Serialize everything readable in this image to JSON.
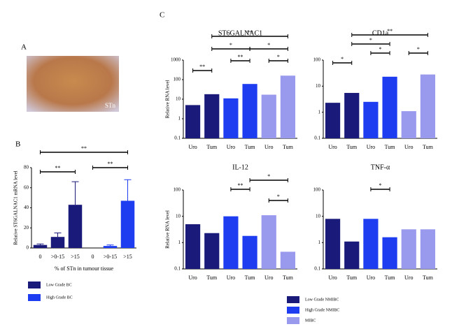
{
  "panel_labels": [
    "A",
    "B",
    "C"
  ],
  "image_label": "STn",
  "legend_c": [
    {
      "name": "Low Grade NMIBC",
      "color": "#1a1a7a"
    },
    {
      "name": "High Grade NMIBC",
      "color": "#1e3cf0"
    },
    {
      "name": "MIBC",
      "color": "#9999ee"
    }
  ],
  "chart_data": [
    {
      "type": "bar",
      "ylabel": "Relative ST6GALNAC1 mRNA level",
      "xlabel": "% of STn in tumour tissue",
      "categories": [
        "0",
        ">0-15",
        ">15",
        "0",
        ">0-15",
        ">15"
      ],
      "series": [
        {
          "name": "Low Grade BC",
          "color": "#1a1a7a",
          "values": [
            3,
            11,
            43,
            null,
            null,
            null
          ],
          "errors": [
            1,
            4,
            23,
            null,
            null,
            null
          ]
        },
        {
          "name": "High Grade BC",
          "color": "#1e3cf0",
          "values": [
            null,
            null,
            null,
            0,
            2,
            47
          ],
          "errors": [
            null,
            null,
            null,
            null,
            1,
            21
          ]
        }
      ],
      "ylim": [
        0,
        80
      ],
      "yticks": [
        0,
        20,
        40,
        60,
        80
      ],
      "annotations": [
        "**",
        "**",
        "**"
      ]
    },
    {
      "type": "bar",
      "title": "ST6GALNAC1",
      "ylabel": "Relative RNA level",
      "log": true,
      "categories": [
        "Uro",
        "Tum",
        "Uro",
        "Tum",
        "Uro",
        "Tum"
      ],
      "values": [
        5,
        18,
        11,
        60,
        17,
        160
      ],
      "colors": [
        "#1a1a7a",
        "#1a1a7a",
        "#1e3cf0",
        "#1e3cf0",
        "#9999ee",
        "#9999ee"
      ],
      "ylim": [
        0.1,
        1000
      ],
      "yticks": [
        0.1,
        1,
        10,
        100,
        1000
      ],
      "annotations": [
        "**",
        "*",
        "*",
        "**",
        "*",
        "**"
      ]
    },
    {
      "type": "bar",
      "title": "CD1a",
      "log": true,
      "categories": [
        "Uro",
        "Tum",
        "Uro",
        "Tum",
        "Uro",
        "Tum"
      ],
      "values": [
        2.3,
        5.5,
        2.5,
        23,
        1.1,
        28
      ],
      "colors": [
        "#1a1a7a",
        "#1a1a7a",
        "#1e3cf0",
        "#1e3cf0",
        "#9999ee",
        "#9999ee"
      ],
      "ylim": [
        0.1,
        100
      ],
      "yticks": [
        0.1,
        1,
        10,
        100
      ],
      "annotations": [
        "**",
        "*",
        "*",
        "*",
        "*"
      ]
    },
    {
      "type": "bar",
      "title": "IL-12",
      "ylabel": "Relative RNA level",
      "log": true,
      "categories": [
        "Uro",
        "Tum",
        "Uro",
        "Tum",
        "Uro",
        "Tum"
      ],
      "values": [
        5,
        2.3,
        10,
        1.8,
        11,
        0.45
      ],
      "colors": [
        "#1a1a7a",
        "#1a1a7a",
        "#1e3cf0",
        "#1e3cf0",
        "#9999ee",
        "#9999ee"
      ],
      "ylim": [
        0.1,
        100
      ],
      "yticks": [
        0.1,
        1,
        10,
        100
      ],
      "annotations": [
        "*",
        "**",
        "*"
      ]
    },
    {
      "type": "bar",
      "title": "TNF-α",
      "log": true,
      "categories": [
        "Uro",
        "Tum",
        "Uro",
        "Tum",
        "Uro",
        "Tum"
      ],
      "values": [
        8,
        1.1,
        8,
        1.6,
        3.2,
        3.2
      ],
      "colors": [
        "#1a1a7a",
        "#1a1a7a",
        "#1e3cf0",
        "#1e3cf0",
        "#9999ee",
        "#9999ee"
      ],
      "ylim": [
        0.1,
        100
      ],
      "yticks": [
        0.1,
        1,
        10,
        100
      ],
      "annotations": [
        "*"
      ]
    }
  ]
}
